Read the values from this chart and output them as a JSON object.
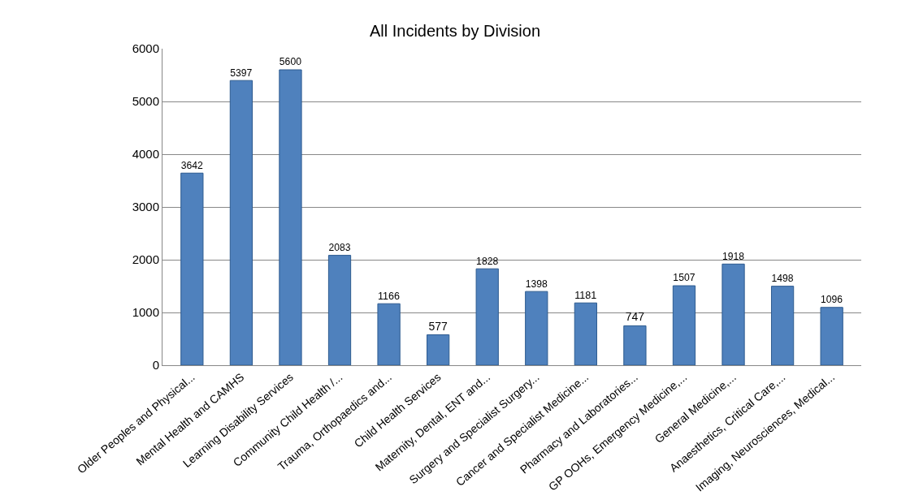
{
  "chart_data": {
    "type": "bar",
    "title": "All Incidents by Division",
    "categories": [
      "Older Peoples and Physical...",
      "Mental Health and CAMHS",
      "Learning Disability Services",
      "Community Child Health /...",
      "Trauma, Orthopaedics and...",
      "Child Health Services",
      "Maternity, Dental, ENT and...",
      "Surgery and Specialist Surgery...",
      "Cancer and Specialist Medicine...",
      "Pharmacy and Laboratories...",
      "GP OOHs, Emergency Medicine,...",
      "General Medicine,...",
      "Anaesthetics, Critical Care,...",
      "Imaging, Neurosciences, Medical..."
    ],
    "values": [
      3642,
      5397,
      5600,
      2083,
      1166,
      577,
      1828,
      1398,
      1181,
      747,
      1507,
      1918,
      1498,
      1096
    ],
    "color": "#4f81bd",
    "ylim": [
      0,
      6000
    ],
    "yticks": [
      0,
      1000,
      2000,
      3000,
      4000,
      5000,
      6000
    ],
    "grid": "y",
    "data_labels": true
  }
}
